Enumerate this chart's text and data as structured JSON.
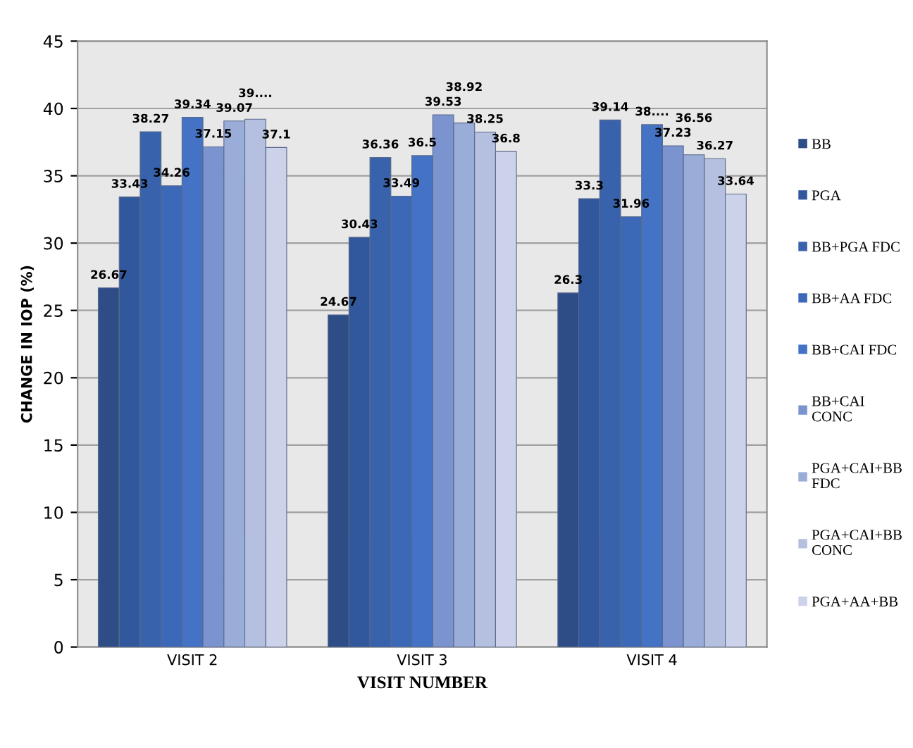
{
  "chart_data": {
    "type": "bar",
    "xlabel": "VISIT NUMBER",
    "ylabel": "CHANGE IN IOP (%)",
    "categories": [
      "VISIT 2",
      "VISIT 3",
      "VISIT 4"
    ],
    "ylim": [
      0,
      45
    ],
    "yticks": [
      0,
      5,
      10,
      15,
      20,
      25,
      30,
      35,
      40,
      45
    ],
    "grid": "y",
    "legend": "right",
    "series": [
      {
        "name": "BB",
        "color": "#2e4d87",
        "values": [
          26.67,
          24.67,
          26.3
        ],
        "value_labels": [
          "26.67",
          "24.67",
          "26.3"
        ]
      },
      {
        "name": "PGA",
        "color": "#31589c",
        "values": [
          33.43,
          30.43,
          33.3
        ],
        "value_labels": [
          "33.43",
          "30.43",
          "33.3"
        ]
      },
      {
        "name": "BB+PGA FDC",
        "color": "#3862ab",
        "values": [
          38.27,
          36.36,
          39.14
        ],
        "value_labels": [
          "38.27",
          "36.36",
          "39.14"
        ]
      },
      {
        "name": "BB+AA FDC",
        "color": "#3b69b8",
        "values": [
          34.26,
          33.49,
          31.96
        ],
        "value_labels": [
          "34.26",
          "33.49",
          "31.96"
        ]
      },
      {
        "name": "BB+CAI FDC",
        "color": "#4472c4",
        "values": [
          39.34,
          36.5,
          38.8
        ],
        "value_labels": [
          "39.34",
          "36.5",
          "38...."
        ]
      },
      {
        "name": "BB+CAI\nCONC",
        "color": "#7b93cf",
        "values": [
          37.15,
          39.53,
          37.23
        ],
        "value_labels": [
          "37.15",
          "39.53",
          "37.23"
        ]
      },
      {
        "name": "PGA+CAI+BB\nFDC",
        "color": "#9aacd8",
        "values": [
          39.07,
          38.92,
          36.56
        ],
        "value_labels": [
          "39.07",
          "38.92",
          "36.56"
        ]
      },
      {
        "name": "PGA+CAI+BB\nCONC",
        "color": "#b5c0e0",
        "values": [
          39.2,
          38.25,
          36.27
        ],
        "value_labels": [
          "39....",
          "38.25",
          "36.27"
        ]
      },
      {
        "name": "PGA+AA+BB",
        "color": "#ccd2ea",
        "values": [
          37.1,
          36.8,
          33.64
        ],
        "value_labels": [
          "37.1",
          "36.8",
          "33.64"
        ]
      }
    ]
  }
}
